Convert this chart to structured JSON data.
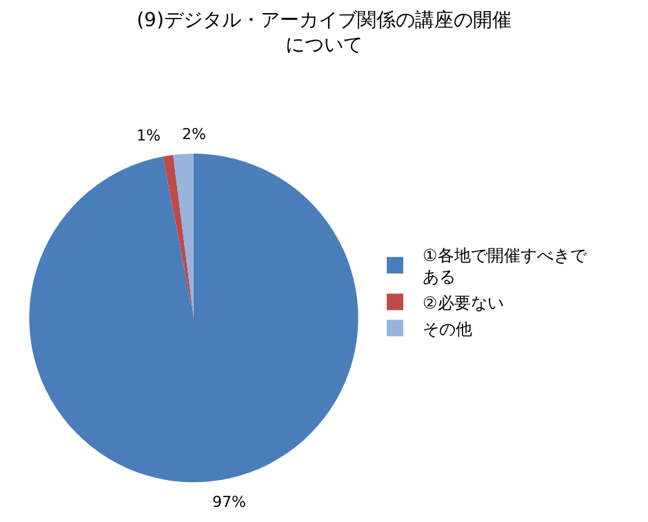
{
  "chart_data": {
    "type": "pie",
    "title": "(9)デジタル・アーカイブ関係の講座の開催について",
    "categories": [
      "①各地で開催すべきである",
      "②必要ない",
      "その他"
    ],
    "values": [
      97,
      1,
      2
    ],
    "colors": [
      "#4a7ebb",
      "#be4b48",
      "#98b3dc"
    ],
    "value_labels": [
      "97%",
      "1%",
      "2%"
    ],
    "legend": "right"
  }
}
